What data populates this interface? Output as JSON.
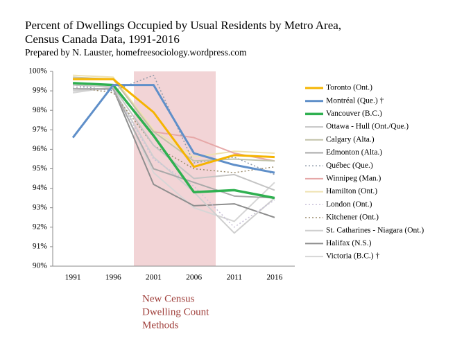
{
  "chart_data": {
    "type": "line",
    "title": "Percent of Dwellings  Occupied by Usual Residents by Metro Area,",
    "subtitle": "Census Canada Data, 1991-2016",
    "source": "Prepared by N. Lauster, homefreesociology.wordpress.com",
    "annotation": [
      "New Census",
      "Dwelling Count",
      "Methods"
    ],
    "categories": [
      "1991",
      "1996",
      "2001",
      "2006",
      "2011",
      "2016"
    ],
    "ylim": [
      90,
      100
    ],
    "yticks": [
      {
        "value": 90,
        "label": "90%"
      },
      {
        "value": 91,
        "label": "91%"
      },
      {
        "value": 92,
        "label": "92%"
      },
      {
        "value": 93,
        "label": "93%"
      },
      {
        "value": 94,
        "label": "94%"
      },
      {
        "value": 95,
        "label": "95%"
      },
      {
        "value": 96,
        "label": "96%"
      },
      {
        "value": 97,
        "label": "97%"
      },
      {
        "value": 98,
        "label": "98%"
      },
      {
        "value": 99,
        "label": "99%"
      },
      {
        "value": 100,
        "label": "100%"
      }
    ],
    "grid": false,
    "series": [
      {
        "name": "Toronto (Ont.)",
        "color": "#f5b400",
        "linewidth": 3,
        "style": "solid",
        "values": [
          99.6,
          99.6,
          97.9,
          95.1,
          95.7,
          95.6
        ]
      },
      {
        "name": "Montréal (Que.)   †",
        "color": "#5f8fc9",
        "linewidth": 3,
        "style": "solid",
        "values": [
          96.6,
          99.3,
          99.3,
          95.8,
          95.2,
          94.8
        ]
      },
      {
        "name": "Vancouver (B.C.)",
        "color": "#2fb050",
        "linewidth": 3.5,
        "style": "solid",
        "values": [
          99.4,
          99.3,
          96.7,
          93.8,
          93.9,
          93.5
        ]
      },
      {
        "name": "Ottawa - Hull (Ont./Que.)",
        "color": "#c4c4c4",
        "linewidth": 2,
        "style": "solid",
        "values": [
          99.3,
          99.2,
          96.2,
          94.5,
          94.7,
          93.9
        ]
      },
      {
        "name": "Calgary (Alta.)",
        "color": "#c2c2a8",
        "linewidth": 2,
        "style": "solid",
        "values": [
          99.7,
          99.6,
          96.9,
          95.4,
          95.5,
          95.4
        ]
      },
      {
        "name": "Edmonton (Alta.)",
        "color": "#a9a9a9",
        "linewidth": 2,
        "style": "solid",
        "values": [
          99.1,
          99.1,
          95.0,
          94.3,
          93.6,
          93.5
        ]
      },
      {
        "name": "Québec (Que.)",
        "color": "#8c98a8",
        "linewidth": 1.5,
        "style": "dotted",
        "values": [
          99.3,
          99.0,
          99.8,
          95.3,
          95.6,
          94.7
        ]
      },
      {
        "name": "Winnipeg (Man.)",
        "color": "#e6a8a8",
        "linewidth": 2,
        "style": "solid",
        "values": [
          99.6,
          99.6,
          96.9,
          96.6,
          95.8,
          95.4
        ]
      },
      {
        "name": "Hamilton (Ont.)",
        "color": "#efe2b0",
        "linewidth": 2,
        "style": "solid",
        "values": [
          99.8,
          99.7,
          97.0,
          95.6,
          95.9,
          95.8
        ]
      },
      {
        "name": "London (Ont.)",
        "color": "#c8c0d8",
        "linewidth": 1.5,
        "style": "dotted",
        "values": [
          99.2,
          99.0,
          95.5,
          94.1,
          92.0,
          93.4
        ]
      },
      {
        "name": "Kitchener (Ont.)",
        "color": "#9a8a6a",
        "linewidth": 1.5,
        "style": "dotted",
        "values": [
          99.2,
          98.9,
          96.2,
          95.0,
          94.8,
          95.1
        ]
      },
      {
        "name": "St. Catharines - Niagara (Ont.)",
        "color": "#cfcfcf",
        "linewidth": 2,
        "style": "solid",
        "values": [
          99.0,
          99.1,
          95.6,
          93.8,
          91.7,
          93.5
        ]
      },
      {
        "name": "Halifax (N.S.)",
        "color": "#8e8e8e",
        "linewidth": 2,
        "style": "solid",
        "values": [
          99.1,
          99.1,
          94.2,
          93.1,
          93.2,
          92.5
        ]
      },
      {
        "name": "Victoria (B.C.)   †",
        "color": "#d6d6d6",
        "linewidth": 2,
        "style": "solid",
        "values": [
          98.9,
          99.2,
          94.8,
          93.0,
          92.3,
          94.3
        ]
      }
    ]
  }
}
